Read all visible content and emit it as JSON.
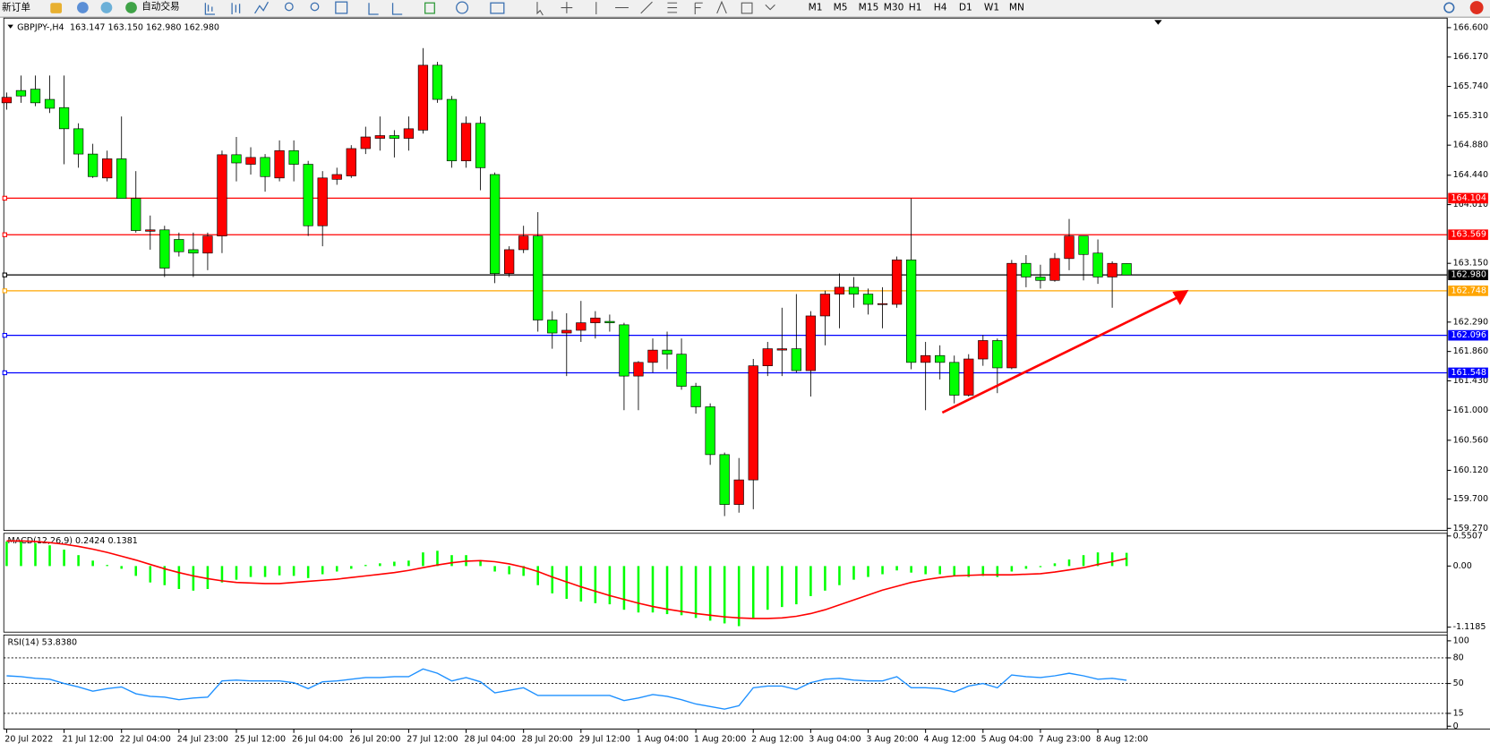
{
  "toolbar": {
    "buttons": [
      "新订单",
      "自动交易"
    ],
    "timeframes": [
      "M1",
      "M5",
      "M15",
      "M30",
      "H1",
      "H4",
      "D1",
      "W1",
      "MN"
    ]
  },
  "chart_data": [
    {
      "type": "candlestick",
      "title": "GBPJPY-,H4",
      "subtitle": "163.147 163.150 162.980 162.980",
      "categories": [
        "20 Jul 2022",
        null,
        null,
        null,
        "21 Jul 12:00",
        null,
        null,
        null,
        "22 Jul 04:00",
        null,
        null,
        null,
        "24 Jul 23:00",
        null,
        null,
        null,
        "25 Jul 12:00",
        null,
        null,
        null,
        "26 Jul 04:00",
        null,
        null,
        null,
        "26 Jul 20:00",
        null,
        null,
        null,
        "27 Jul 12:00",
        null,
        null,
        null,
        "28 Jul 04:00",
        null,
        null,
        null,
        "28 Jul 20:00",
        null,
        null,
        null,
        "29 Jul 12:00",
        null,
        null,
        null,
        "1 Aug 04:00",
        null,
        null,
        null,
        "1 Aug 20:00",
        null,
        null,
        null,
        "2 Aug 12:00",
        null,
        null,
        null,
        "3 Aug 04:00",
        null,
        null,
        null,
        "3 Aug 20:00",
        null,
        null,
        null,
        "4 Aug 12:00",
        null,
        null,
        null,
        "5 Aug 04:00",
        null,
        null,
        null,
        "7 Aug 23:00",
        null,
        null,
        null,
        "8 Aug 12:00",
        null,
        null
      ],
      "open": [
        165.5,
        165.68,
        165.7,
        165.55,
        165.43,
        165.12,
        164.75,
        164.4,
        164.68,
        164.1,
        163.62,
        163.64,
        163.5,
        163.35,
        163.3,
        163.55,
        164.74,
        164.6,
        164.7,
        164.4,
        164.8,
        164.6,
        163.7,
        164.38,
        164.43,
        164.83,
        164.98,
        165.02,
        164.98,
        165.1,
        166.05,
        165.55,
        164.65,
        165.2,
        164.45,
        163.0,
        163.35,
        163.55,
        162.32,
        162.13,
        162.17,
        162.28,
        162.3,
        162.25,
        161.5,
        161.7,
        161.88,
        161.82,
        161.35,
        161.05,
        160.35,
        159.62,
        159.98,
        161.65,
        161.88,
        161.9,
        161.58,
        162.38,
        162.7,
        162.8,
        162.7,
        162.55,
        162.55,
        163.2,
        161.7,
        161.8,
        161.7,
        161.22,
        161.75,
        162.02,
        161.62,
        163.15,
        162.95,
        162.9,
        163.22,
        163.55,
        163.3,
        162.95,
        163.147
      ],
      "high": [
        165.65,
        165.9,
        165.9,
        165.9,
        165.9,
        165.2,
        164.9,
        164.8,
        165.3,
        164.5,
        163.85,
        163.7,
        163.6,
        163.6,
        163.6,
        164.8,
        165.0,
        164.85,
        164.75,
        164.95,
        164.95,
        164.65,
        164.5,
        164.55,
        164.88,
        165.15,
        165.3,
        165.1,
        165.3,
        166.3,
        166.1,
        165.6,
        165.3,
        165.3,
        164.48,
        163.4,
        163.7,
        163.9,
        162.45,
        162.42,
        162.6,
        162.45,
        162.4,
        162.28,
        161.72,
        162.05,
        162.15,
        162.05,
        161.4,
        161.1,
        160.38,
        160.3,
        161.75,
        162.0,
        162.5,
        162.7,
        162.45,
        162.75,
        163.0,
        162.95,
        162.78,
        162.8,
        163.25,
        164.1,
        162.0,
        161.95,
        161.8,
        161.82,
        162.1,
        162.05,
        163.2,
        163.27,
        163.13,
        163.3,
        163.8,
        163.55,
        163.5,
        163.18,
        163.15
      ],
      "low": [
        165.4,
        165.5,
        165.45,
        165.35,
        164.6,
        164.55,
        164.4,
        164.35,
        164.1,
        163.6,
        163.35,
        162.95,
        163.25,
        162.95,
        163.05,
        163.3,
        164.35,
        164.45,
        164.2,
        164.35,
        164.35,
        163.55,
        163.4,
        164.3,
        164.4,
        164.75,
        164.8,
        164.7,
        164.8,
        165.05,
        165.5,
        164.55,
        164.55,
        164.22,
        162.86,
        162.95,
        163.3,
        162.15,
        161.9,
        161.5,
        162.0,
        162.05,
        162.15,
        161.0,
        161.0,
        161.55,
        161.6,
        161.3,
        160.95,
        160.2,
        159.45,
        159.5,
        159.55,
        161.5,
        161.5,
        161.55,
        161.2,
        161.95,
        162.2,
        162.5,
        162.4,
        162.2,
        162.5,
        161.6,
        161.0,
        161.45,
        161.1,
        161.2,
        161.65,
        161.25,
        161.6,
        162.8,
        162.78,
        162.88,
        163.05,
        162.9,
        162.85,
        162.5,
        162.98
      ],
      "close": [
        165.58,
        165.6,
        165.5,
        165.42,
        165.12,
        164.75,
        164.42,
        164.68,
        164.1,
        163.63,
        163.64,
        163.08,
        163.32,
        163.3,
        163.55,
        164.74,
        164.62,
        164.7,
        164.42,
        164.8,
        164.6,
        163.7,
        164.4,
        164.45,
        164.83,
        165.0,
        165.02,
        164.98,
        165.12,
        166.05,
        165.55,
        164.65,
        165.2,
        164.55,
        163.0,
        163.35,
        163.55,
        162.32,
        162.13,
        162.17,
        162.28,
        162.35,
        162.28,
        161.5,
        161.7,
        161.88,
        161.82,
        161.35,
        161.05,
        160.35,
        159.62,
        159.98,
        161.65,
        161.9,
        161.9,
        161.58,
        162.38,
        162.7,
        162.8,
        162.7,
        162.55,
        162.56,
        163.2,
        161.7,
        161.8,
        161.7,
        161.22,
        161.75,
        162.02,
        161.62,
        163.15,
        162.95,
        162.9,
        163.22,
        163.55,
        163.28,
        162.95,
        163.15,
        162.98
      ],
      "up_color": "#ff0000",
      "down_color": "#00ff00",
      "ylim": [
        159.24,
        166.74
      ],
      "yticks": [
        {
          "value": 166.6,
          "label": "166.600"
        },
        {
          "value": 166.17,
          "label": "166.170"
        },
        {
          "value": 165.74,
          "label": "165.740"
        },
        {
          "value": 165.31,
          "label": "165.310"
        },
        {
          "value": 164.88,
          "label": "164.880"
        },
        {
          "value": 164.44,
          "label": "164.440"
        },
        {
          "value": 164.01,
          "label": "164.010"
        },
        {
          "value": 163.15,
          "label": "163.150"
        },
        {
          "value": 162.29,
          "label": "162.290"
        },
        {
          "value": 161.86,
          "label": "161.860"
        },
        {
          "value": 161.43,
          "label": "161.430"
        },
        {
          "value": 161.0,
          "label": "161.000"
        },
        {
          "value": 160.56,
          "label": "160.560"
        },
        {
          "value": 160.12,
          "label": "160.120"
        },
        {
          "value": 159.7,
          "label": "159.700"
        },
        {
          "value": 159.27,
          "label": "159.270"
        }
      ],
      "levels": [
        {
          "value": 164.104,
          "label": "164.104",
          "color": "#ff0000"
        },
        {
          "value": 163.569,
          "label": "163.569",
          "color": "#ff0000"
        },
        {
          "value": 162.98,
          "label": "162.980",
          "color": "#000000"
        },
        {
          "value": 162.748,
          "label": "162.748",
          "color": "#ffa500"
        },
        {
          "value": 162.096,
          "label": "162.096",
          "color": "#0000ff"
        },
        {
          "value": 161.548,
          "label": "161.548",
          "color": "#0000ff"
        }
      ]
    },
    {
      "type": "macd",
      "title": "MACD(12,26,9) 0.2424 0.1381",
      "histogram": {
        "color": "#00ff00",
        "values": [
          0.45,
          0.45,
          0.42,
          0.38,
          0.3,
          0.2,
          0.1,
          0.02,
          -0.05,
          -0.18,
          -0.3,
          -0.35,
          -0.42,
          -0.45,
          -0.42,
          -0.3,
          -0.25,
          -0.2,
          -0.2,
          -0.17,
          -0.18,
          -0.22,
          -0.15,
          -0.1,
          -0.05,
          0.02,
          0.05,
          0.08,
          0.1,
          0.25,
          0.28,
          0.2,
          0.2,
          0.1,
          -0.1,
          -0.15,
          -0.18,
          -0.35,
          -0.5,
          -0.6,
          -0.65,
          -0.68,
          -0.7,
          -0.8,
          -0.85,
          -0.85,
          -0.88,
          -0.9,
          -0.95,
          -1.0,
          -1.05,
          -1.1,
          -0.95,
          -0.8,
          -0.75,
          -0.7,
          -0.55,
          -0.45,
          -0.35,
          -0.25,
          -0.2,
          -0.15,
          -0.08,
          -0.12,
          -0.15,
          -0.15,
          -0.18,
          -0.2,
          -0.18,
          -0.2,
          -0.1,
          -0.05,
          -0.02,
          0.05,
          0.12,
          0.2,
          0.25,
          0.25,
          0.2424
        ]
      },
      "signal": {
        "color": "#ff0000",
        "values": [
          0.46,
          0.46,
          0.45,
          0.43,
          0.4,
          0.36,
          0.31,
          0.25,
          0.18,
          0.11,
          0.03,
          -0.05,
          -0.12,
          -0.18,
          -0.23,
          -0.27,
          -0.3,
          -0.31,
          -0.32,
          -0.32,
          -0.3,
          -0.28,
          -0.26,
          -0.24,
          -0.21,
          -0.18,
          -0.15,
          -0.12,
          -0.08,
          -0.03,
          0.02,
          0.06,
          0.09,
          0.1,
          0.08,
          0.04,
          -0.02,
          -0.1,
          -0.2,
          -0.29,
          -0.38,
          -0.46,
          -0.54,
          -0.61,
          -0.68,
          -0.74,
          -0.79,
          -0.83,
          -0.87,
          -0.9,
          -0.93,
          -0.95,
          -0.96,
          -0.96,
          -0.95,
          -0.92,
          -0.87,
          -0.8,
          -0.71,
          -0.62,
          -0.53,
          -0.44,
          -0.37,
          -0.3,
          -0.25,
          -0.21,
          -0.18,
          -0.17,
          -0.16,
          -0.16,
          -0.16,
          -0.15,
          -0.14,
          -0.11,
          -0.07,
          -0.03,
          0.03,
          0.08,
          0.1381
        ]
      },
      "ylim": [
        -1.21,
        0.6
      ],
      "yticks": [
        0.5507,
        {
          "value": 0,
          "label": "0.00"
        },
        -1.1185
      ]
    },
    {
      "type": "rsi",
      "title": "RSI(14) 53.8380",
      "color": "#1e90ff",
      "values": [
        59,
        58,
        56,
        55,
        50,
        46,
        41,
        44,
        46,
        38,
        35,
        34,
        31,
        33,
        34,
        53,
        54,
        53,
        53,
        53,
        51,
        44,
        52,
        53,
        55,
        57,
        57,
        58,
        58,
        67,
        62,
        53,
        57,
        52,
        39,
        42,
        45,
        36,
        36,
        36,
        36,
        36,
        36,
        30,
        33,
        37,
        35,
        31,
        26,
        23,
        20,
        24,
        45,
        47,
        47,
        43,
        51,
        55,
        56,
        54,
        53,
        53,
        58,
        45,
        45,
        44,
        40,
        47,
        50,
        45,
        60,
        58,
        57,
        59,
        62,
        59,
        55,
        56,
        53.838
      ],
      "ylim": [
        -3.4,
        106.8
      ],
      "yticks": [
        100,
        80,
        50,
        15,
        0
      ],
      "levels": [
        80,
        50,
        15
      ]
    }
  ]
}
